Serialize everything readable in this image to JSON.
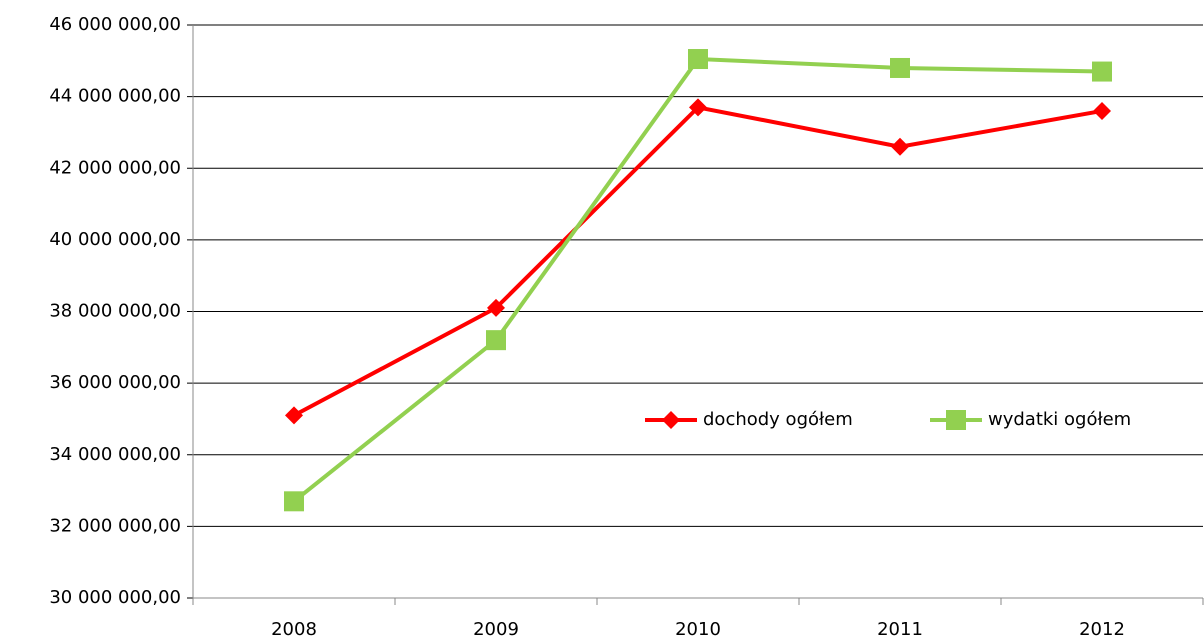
{
  "chart_data": {
    "type": "line",
    "categories": [
      "2008",
      "2009",
      "2010",
      "2011",
      "2012"
    ],
    "series": [
      {
        "name": "dochody ogółem",
        "color": "#ff0000",
        "marker": "diamond",
        "values": [
          35100000,
          38100000,
          43700000,
          42600000,
          43600000
        ]
      },
      {
        "name": "wydatki ogółem",
        "color": "#92d050",
        "marker": "square",
        "values": [
          32700000,
          37200000,
          45050000,
          44800000,
          44700000
        ]
      }
    ],
    "ylim": [
      30000000,
      46000000
    ],
    "yticks": [
      {
        "value": 30000000,
        "label": "30 000 000,00"
      },
      {
        "value": 32000000,
        "label": "32 000 000,00"
      },
      {
        "value": 34000000,
        "label": "34 000 000,00"
      },
      {
        "value": 36000000,
        "label": "36 000 000,00"
      },
      {
        "value": 38000000,
        "label": "38 000 000,00"
      },
      {
        "value": 40000000,
        "label": "40 000 000,00"
      },
      {
        "value": 42000000,
        "label": "42 000 000,00"
      },
      {
        "value": 44000000,
        "label": "44 000 000,00"
      },
      {
        "value": 46000000,
        "label": "46 000 000,00"
      }
    ],
    "grid": true
  }
}
